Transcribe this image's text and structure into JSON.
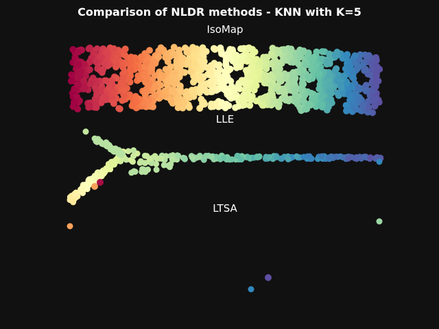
{
  "title": "Comparison of NLDR methods - KNN with K=5",
  "colormap": [
    "#9e0142",
    "#d53e4f",
    "#f46d43",
    "#fdae61",
    "#fee08b",
    "#ffffbf",
    "#e6f598",
    "#abdda4",
    "#66c2a5",
    "#3288bd",
    "#5e4fa2"
  ],
  "background": "#111111",
  "chart_data": [
    {
      "type": "scatter",
      "title": "IsoMap",
      "description_color": "colour encodes position along manifold (0 = red, 1 = purple)",
      "generator": {
        "t_range": [
          0,
          1
        ],
        "x_range": [
          -1,
          1
        ],
        "y_range": [
          -0.35,
          0.35
        ]
      },
      "points_note": "continuous rectangular band with holes, colored by t"
    },
    {
      "type": "scatter",
      "title": "LLE",
      "points": [
        [
          0.0,
          0.05
        ],
        [
          0.02,
          0.06
        ],
        [
          0.05,
          0.08
        ],
        [
          0.08,
          0.1
        ],
        [
          0.1,
          0.12
        ],
        [
          0.12,
          0.14
        ],
        [
          0.14,
          0.17
        ],
        [
          0.16,
          0.19
        ],
        [
          0.18,
          0.22
        ],
        [
          0.2,
          0.24
        ],
        [
          0.22,
          0.26
        ],
        [
          0.24,
          0.29
        ],
        [
          0.26,
          0.31
        ],
        [
          0.28,
          0.34
        ],
        [
          0.3,
          0.36
        ],
        [
          0.32,
          0.39
        ],
        [
          0.34,
          0.42
        ],
        [
          0.36,
          0.44
        ],
        [
          0.38,
          0.47
        ],
        [
          0.4,
          0.5
        ],
        [
          0.42,
          0.52
        ],
        [
          0.44,
          0.55
        ],
        [
          0.46,
          0.57
        ],
        [
          0.48,
          0.6
        ],
        [
          0.5,
          0.62
        ],
        [
          0.52,
          0.65
        ],
        [
          0.54,
          0.67
        ],
        [
          0.56,
          0.69
        ],
        [
          0.58,
          0.72
        ],
        [
          0.6,
          0.74
        ],
        [
          0.62,
          0.77
        ],
        [
          0.64,
          0.79
        ],
        [
          0.66,
          0.82
        ],
        [
          0.68,
          0.84
        ],
        [
          0.7,
          0.87
        ],
        [
          0.72,
          0.89
        ],
        [
          0.74,
          0.91
        ],
        [
          0.76,
          0.93
        ],
        [
          0.78,
          0.95
        ],
        [
          0.8,
          0.97
        ],
        [
          0.82,
          0.98
        ],
        [
          0.84,
          0.99
        ],
        [
          0.86,
          0.99
        ],
        [
          0.88,
          1.0
        ],
        [
          0.9,
          1.0
        ],
        [
          0.92,
          1.0
        ],
        [
          0.94,
          1.0
        ],
        [
          0.96,
          1.0
        ],
        [
          0.98,
          1.0
        ],
        [
          1.0,
          1.0
        ]
      ]
    },
    {
      "type": "scatter",
      "title": "LTSA",
      "points": [
        {
          "x": 0.0,
          "y": 0.86,
          "c": 0.3
        },
        {
          "x": 1.0,
          "y": 0.88,
          "c": 0.72
        },
        {
          "x": 0.6,
          "y": 0.25,
          "c": 1.0
        },
        {
          "x": 0.55,
          "y": 0.12,
          "c": 0.9
        }
      ]
    }
  ]
}
